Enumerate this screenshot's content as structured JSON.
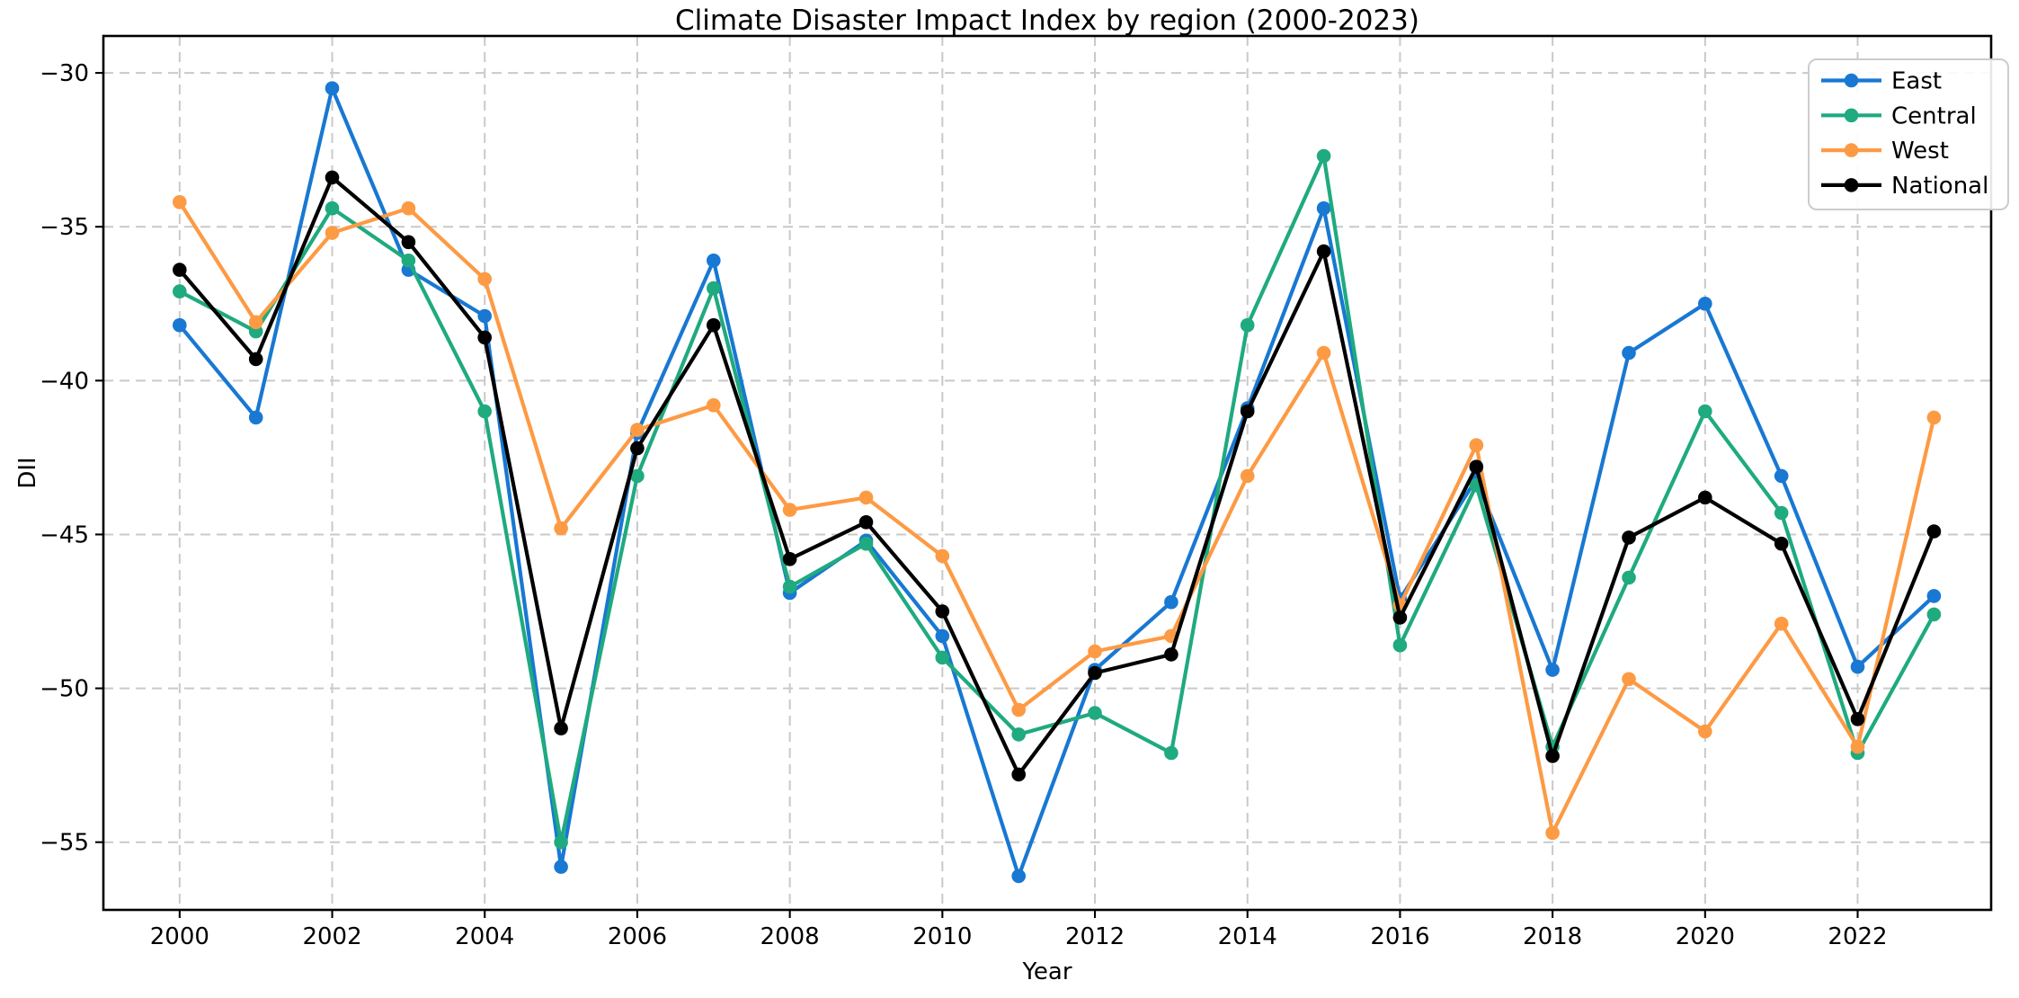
{
  "chart_data": {
    "type": "line",
    "title": "Climate Disaster Impact Index by region (2000-2023)",
    "xlabel": "Year",
    "ylabel": "DII",
    "x": [
      2000,
      2001,
      2002,
      2003,
      2004,
      2005,
      2006,
      2007,
      2008,
      2009,
      2010,
      2011,
      2012,
      2013,
      2014,
      2015,
      2016,
      2017,
      2018,
      2019,
      2020,
      2021,
      2022,
      2023
    ],
    "series": [
      {
        "name": "East",
        "color": "#1878d2",
        "values": [
          -38.2,
          -41.2,
          -30.5,
          -36.4,
          -37.9,
          -55.8,
          -41.7,
          -36.1,
          -46.9,
          -45.2,
          -48.3,
          -56.1,
          -49.4,
          -47.2,
          -40.9,
          -34.4,
          -47.1,
          -43.2,
          -49.4,
          -39.1,
          -37.5,
          -43.1,
          -49.3,
          -47.0
        ]
      },
      {
        "name": "Central",
        "color": "#1faa7f",
        "values": [
          -37.1,
          -38.4,
          -34.4,
          -36.1,
          -41.0,
          -55.0,
          -43.1,
          -37.0,
          -46.7,
          -45.3,
          -49.0,
          -51.5,
          -50.8,
          -52.1,
          -38.2,
          -32.7,
          -48.6,
          -43.4,
          -51.9,
          -46.4,
          -41.0,
          -44.3,
          -52.1,
          -47.6
        ]
      },
      {
        "name": "West",
        "color": "#fd9a44",
        "values": [
          -34.2,
          -38.1,
          -35.2,
          -34.4,
          -36.7,
          -44.8,
          -41.6,
          -40.8,
          -44.2,
          -43.8,
          -45.7,
          -50.7,
          -48.8,
          -48.3,
          -43.1,
          -39.1,
          -47.3,
          -42.1,
          -54.7,
          -49.7,
          -51.4,
          -47.9,
          -51.9,
          -41.2
        ]
      },
      {
        "name": "National",
        "color": "#000000",
        "values": [
          -36.4,
          -39.3,
          -33.4,
          -35.5,
          -38.6,
          -51.3,
          -42.2,
          -38.2,
          -45.8,
          -44.6,
          -47.5,
          -52.8,
          -49.5,
          -48.9,
          -41.0,
          -35.8,
          -47.7,
          -42.8,
          -52.2,
          -45.1,
          -43.8,
          -45.3,
          -51.0,
          -44.9
        ]
      }
    ],
    "xlim": [
      1999.0,
      2023.75
    ],
    "ylim": [
      -57.2,
      -28.8
    ],
    "xticks": [
      {
        "value": 2000,
        "label": "2000"
      },
      {
        "value": 2002,
        "label": "2002"
      },
      {
        "value": 2004,
        "label": "2004"
      },
      {
        "value": 2006,
        "label": "2006"
      },
      {
        "value": 2008,
        "label": "2008"
      },
      {
        "value": 2010,
        "label": "2010"
      },
      {
        "value": 2012,
        "label": "2012"
      },
      {
        "value": 2014,
        "label": "2014"
      },
      {
        "value": 2016,
        "label": "2016"
      },
      {
        "value": 2018,
        "label": "2018"
      },
      {
        "value": 2020,
        "label": "2020"
      },
      {
        "value": 2022,
        "label": "2022"
      }
    ],
    "yticks": [
      {
        "value": -30,
        "label": "−30"
      },
      {
        "value": -35,
        "label": "−35"
      },
      {
        "value": -40,
        "label": "−40"
      },
      {
        "value": -45,
        "label": "−45"
      },
      {
        "value": -50,
        "label": "−50"
      },
      {
        "value": -55,
        "label": "−55"
      }
    ],
    "grid": {
      "style": "dashed",
      "color": "#c9c9c9"
    },
    "legend": {
      "position": "upper right",
      "entries": [
        "East",
        "Central",
        "West",
        "National"
      ]
    },
    "marker": "circle"
  }
}
